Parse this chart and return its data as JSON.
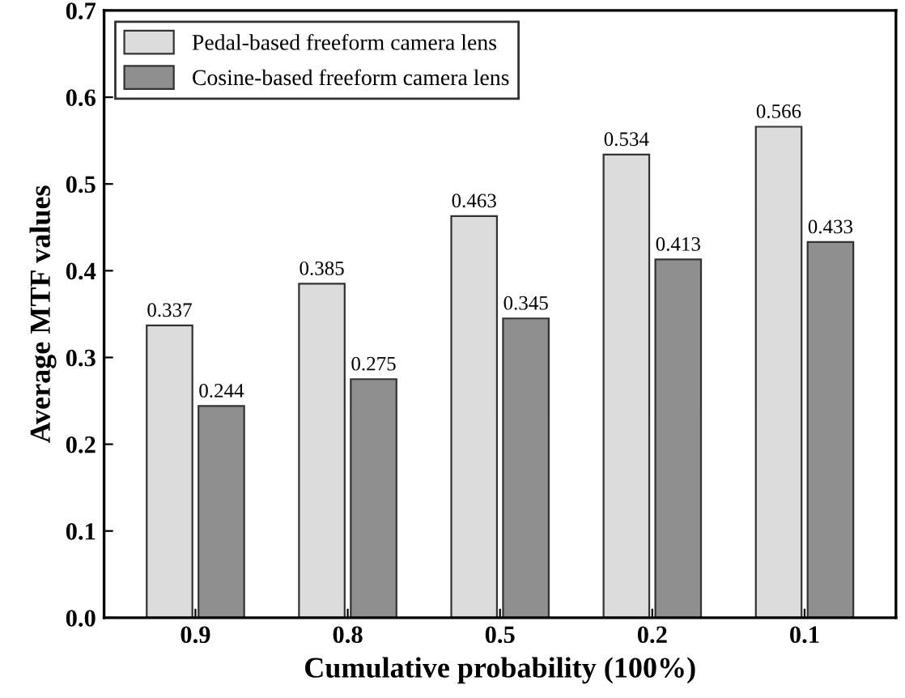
{
  "chart_data": {
    "type": "bar",
    "xlabel": "Cumulative probability (100%)",
    "ylabel": "Average MTF values",
    "categories": [
      "0.9",
      "0.8",
      "0.5",
      "0.2",
      "0.1"
    ],
    "series": [
      {
        "name": "Pedal-based freeform camera lens",
        "color": "#dcdcdc",
        "values": [
          0.337,
          0.385,
          0.463,
          0.534,
          0.566
        ]
      },
      {
        "name": "Cosine-based freeform camera lens",
        "color": "#8f8f8f",
        "values": [
          0.244,
          0.275,
          0.345,
          0.413,
          0.433
        ]
      }
    ],
    "ylim": [
      0,
      0.7
    ],
    "yticks": [
      {
        "value": 0,
        "label": "0.0"
      },
      {
        "value": 0.1,
        "label": "0.1"
      },
      {
        "value": 0.2,
        "label": "0.2"
      },
      {
        "value": 0.3,
        "label": "0.3"
      },
      {
        "value": 0.4,
        "label": "0.4"
      },
      {
        "value": 0.5,
        "label": "0.5"
      },
      {
        "value": 0.6,
        "label": "0.6"
      },
      {
        "value": 0.7,
        "label": "0.7"
      }
    ],
    "data_labels": true,
    "legend": "top left",
    "grid": false
  }
}
